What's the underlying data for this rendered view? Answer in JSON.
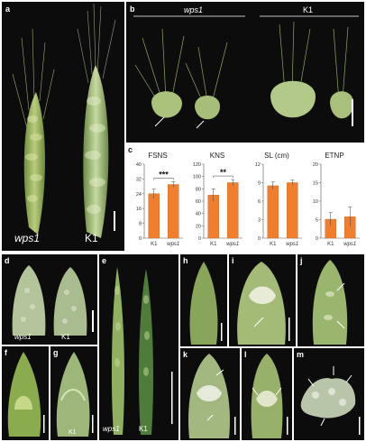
{
  "panels": {
    "a": {
      "label": "a",
      "left_label": "wps1",
      "right_label": "K1"
    },
    "b": {
      "label": "b",
      "left_label": "wps1",
      "right_label": "K1"
    },
    "c": {
      "label": "c"
    },
    "d": {
      "label": "d",
      "left_label": "wps1",
      "right_label": "K1"
    },
    "e": {
      "label": "e",
      "left_label": "wps1",
      "right_label": "K1"
    },
    "f": {
      "label": "f"
    },
    "g": {
      "label": "g",
      "caption": "K1"
    },
    "h": {
      "label": "h"
    },
    "i": {
      "label": "i"
    },
    "j": {
      "label": "j"
    },
    "k": {
      "label": "k"
    },
    "l": {
      "label": "l"
    },
    "m": {
      "label": "m"
    }
  },
  "colors": {
    "bar": "#ef7e2e",
    "bar_edge": "#c9621c",
    "spike_green": "#9fbf6b",
    "dark_bg": "#0c0c0c"
  },
  "chart_data": [
    {
      "type": "bar",
      "title": "FSNS",
      "categories": [
        "K1",
        "wps1"
      ],
      "values": [
        24,
        29
      ],
      "errors": [
        2.5,
        1.5
      ],
      "ylim": [
        0,
        40
      ],
      "yticks": [
        0,
        8,
        16,
        24,
        32,
        40
      ],
      "significance": "***"
    },
    {
      "type": "bar",
      "title": "KNS",
      "categories": [
        "K1",
        "wps1"
      ],
      "values": [
        70,
        90
      ],
      "errors": [
        10,
        5
      ],
      "ylim": [
        0,
        120
      ],
      "yticks": [
        0,
        20,
        40,
        60,
        80,
        100,
        120
      ],
      "significance": "**"
    },
    {
      "type": "bar",
      "title": "SL (cm)",
      "categories": [
        "K1",
        "wps1"
      ],
      "values": [
        8.5,
        9
      ],
      "errors": [
        0.6,
        0.4
      ],
      "ylim": [
        0,
        12
      ],
      "yticks": [
        0,
        3,
        6,
        9,
        12
      ],
      "significance": ""
    },
    {
      "type": "bar",
      "title": "ETNP",
      "categories": [
        "K1",
        "wps1"
      ],
      "values": [
        5.1,
        5.8
      ],
      "errors": [
        1.8,
        2.7
      ],
      "ylim": [
        0,
        20
      ],
      "yticks": [
        0,
        5,
        10,
        15,
        20
      ],
      "significance": ""
    }
  ]
}
